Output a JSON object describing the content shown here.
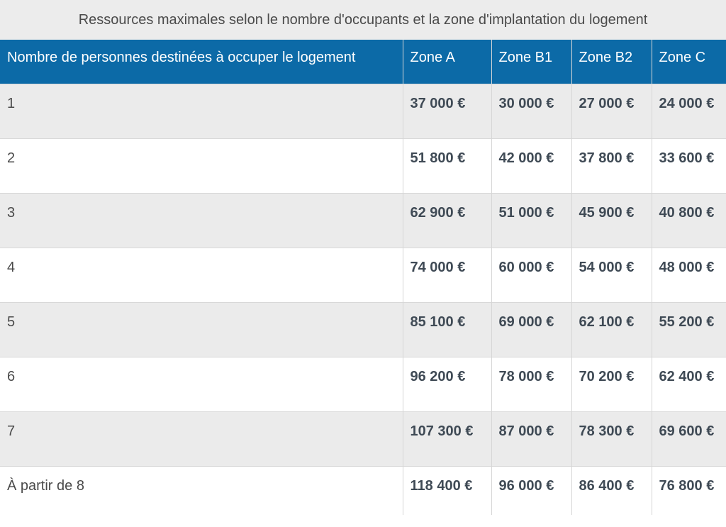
{
  "caption": "Ressources maximales selon le nombre d'occupants et la zone d'implantation du logement",
  "headers": [
    "Nombre de personnes destinées à occuper le logement",
    "Zone A",
    "Zone B1",
    "Zone B2",
    "Zone C"
  ],
  "rows": [
    {
      "persons": "1",
      "zone_a": "37 000 €",
      "zone_b1": "30 000 €",
      "zone_b2": "27 000 €",
      "zone_c": "24 000 €"
    },
    {
      "persons": "2",
      "zone_a": "51 800 €",
      "zone_b1": "42 000 €",
      "zone_b2": "37 800 €",
      "zone_c": "33 600 €"
    },
    {
      "persons": "3",
      "zone_a": "62 900 €",
      "zone_b1": "51 000 €",
      "zone_b2": "45 900 €",
      "zone_c": "40 800 €"
    },
    {
      "persons": "4",
      "zone_a": "74 000 €",
      "zone_b1": "60 000 €",
      "zone_b2": "54 000 €",
      "zone_c": "48 000 €"
    },
    {
      "persons": "5",
      "zone_a": "85 100 €",
      "zone_b1": "69 000 €",
      "zone_b2": "62 100 €",
      "zone_c": "55 200 €"
    },
    {
      "persons": "6",
      "zone_a": "96 200 €",
      "zone_b1": "78 000 €",
      "zone_b2": "70 200 €",
      "zone_c": "62 400 €"
    },
    {
      "persons": "7",
      "zone_a": "107 300 €",
      "zone_b1": "87 000 €",
      "zone_b2": "78 300 €",
      "zone_c": "69 600 €"
    },
    {
      "persons": "À partir de 8",
      "zone_a": "118 400 €",
      "zone_b1": "96 000 €",
      "zone_b2": "86 400 €",
      "zone_c": "76 800 €"
    }
  ],
  "colors": {
    "header_bg": "#0c6aa7",
    "caption_bg": "#ececec",
    "stripe_bg": "#ebebeb"
  }
}
